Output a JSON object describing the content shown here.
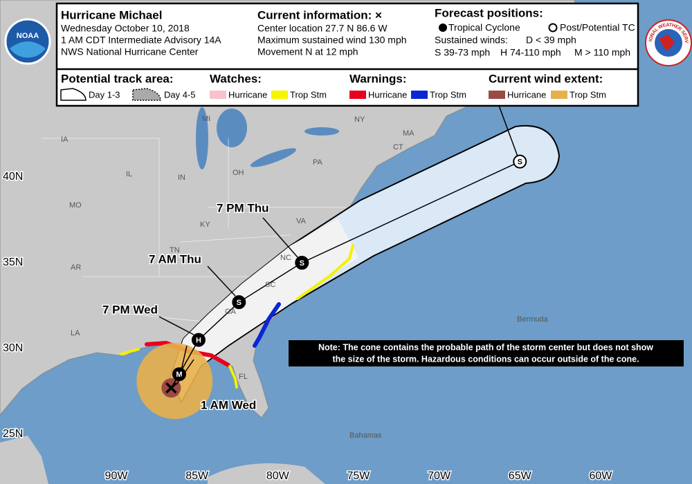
{
  "header": {
    "title": "Hurricane Michael",
    "date": "Wednesday October 10, 2018",
    "advisory": "1 AM CDT Intermediate Advisory 14A",
    "center": "NWS National Hurricane Center"
  },
  "current_info": {
    "title": "Current information: ×",
    "lines": [
      "Center location 27.7 N 86.6 W",
      "Maximum sustained wind 130 mph",
      "Movement N at 12 mph"
    ]
  },
  "forecast_positions": {
    "title": "Forecast positions:",
    "tropical_cyclone": "Tropical Cyclone",
    "post_tc": "Post/Potential TC",
    "winds_label": "Sustained winds:",
    "winds": [
      "D < 39 mph",
      "S 39-73 mph",
      "H 74-110 mph",
      "M > 110 mph"
    ]
  },
  "legend": {
    "track_title": "Potential track area:",
    "day_1_3": "Day 1-3",
    "day_4_5": "Day 4-5",
    "watches_title": "Watches:",
    "watches": [
      "Hurricane",
      "Trop Stm"
    ],
    "warnings_title": "Warnings:",
    "warnings": [
      "Hurricane",
      "Trop Stm"
    ],
    "wind_title": "Current wind extent:",
    "wind": [
      "Hurricane",
      "Trop Stm"
    ]
  },
  "logos": {
    "noaa": "NOAA",
    "nws": "NATIONAL WEATHER SERVICE"
  },
  "map": {
    "lat_labels": [
      {
        "value": 40,
        "label": "40N"
      },
      {
        "value": 35,
        "label": "35N"
      },
      {
        "value": 30,
        "label": "30N"
      },
      {
        "value": 25,
        "label": "25N"
      }
    ],
    "lon_labels": [
      {
        "value": 90,
        "label": "90W"
      },
      {
        "value": 85,
        "label": "85W"
      },
      {
        "value": 80,
        "label": "80W"
      },
      {
        "value": 75,
        "label": "75W"
      },
      {
        "value": 70,
        "label": "70W"
      },
      {
        "value": 65,
        "label": "65W"
      },
      {
        "value": 60,
        "label": "60W"
      }
    ],
    "regions": [
      "MI",
      "NY",
      "MA",
      "CT",
      "IA",
      "IL",
      "IN",
      "OH",
      "PA",
      "MO",
      "KY",
      "VA",
      "TN",
      "NC",
      "SC",
      "AR",
      "GA",
      "LA",
      "FL",
      "Bermuda",
      "Bahamas"
    ],
    "current_center": {
      "lat": 27.7,
      "lon": 86.6
    },
    "forecast_points": [
      {
        "label": "M",
        "lat": 28.5,
        "lon": 86.1
      },
      {
        "label": "H",
        "lat": 30.5,
        "lon": 84.9,
        "time": "7 PM Wed"
      },
      {
        "label": "S",
        "lat": 32.7,
        "lon": 82.4,
        "time": "7 AM Thu"
      },
      {
        "label": "S",
        "lat": 35.0,
        "lon": 78.5,
        "time": "7 PM Thu"
      },
      {
        "label": "S",
        "lat": 40.9,
        "lon": 65.0
      }
    ],
    "current_time": "1 AM Wed",
    "note": [
      "Note: The cone contains the probable path of the storm center but does not show",
      "the size of the storm. Hazardous conditions can occur outside of the cone."
    ]
  }
}
